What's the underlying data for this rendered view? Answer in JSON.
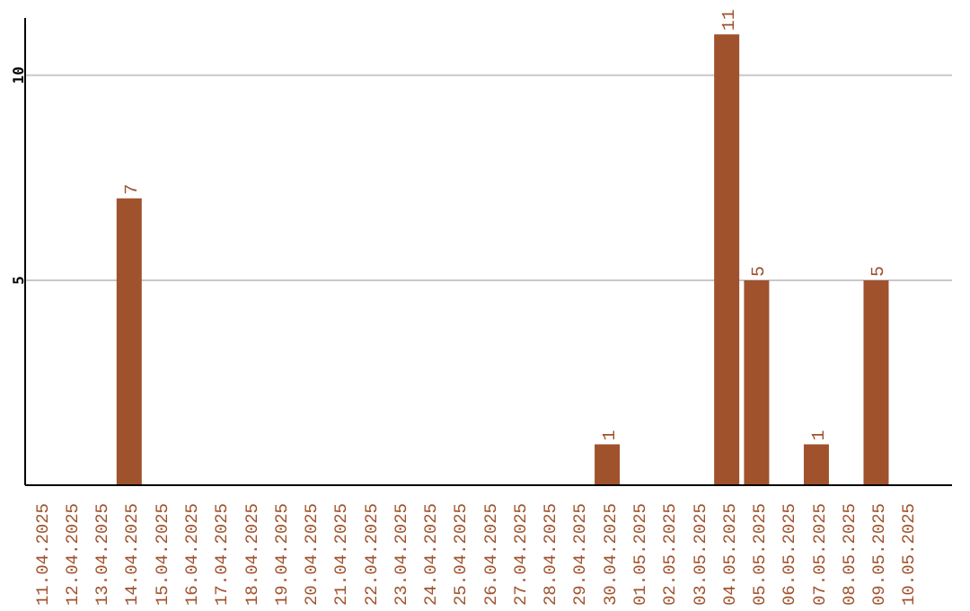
{
  "chart_data": {
    "type": "bar",
    "categories": [
      "11.04.2025",
      "12.04.2025",
      "13.04.2025",
      "14.04.2025",
      "15.04.2025",
      "16.04.2025",
      "17.04.2025",
      "18.04.2025",
      "19.04.2025",
      "20.04.2025",
      "21.04.2025",
      "22.04.2025",
      "23.04.2025",
      "24.04.2025",
      "25.04.2025",
      "26.04.2025",
      "27.04.2025",
      "28.04.2025",
      "29.04.2025",
      "30.04.2025",
      "01.05.2025",
      "02.05.2025",
      "03.05.2025",
      "04.05.2025",
      "05.05.2025",
      "06.05.2025",
      "07.05.2025",
      "08.05.2025",
      "09.05.2025",
      "10.05.2025"
    ],
    "values": [
      0,
      0,
      0,
      7,
      0,
      0,
      0,
      0,
      0,
      0,
      0,
      0,
      0,
      0,
      0,
      0,
      0,
      0,
      0,
      1,
      0,
      0,
      0,
      11,
      5,
      0,
      1,
      0,
      5,
      0
    ],
    "value_labels": [
      null,
      null,
      null,
      "7",
      null,
      null,
      null,
      null,
      null,
      null,
      null,
      null,
      null,
      null,
      null,
      null,
      null,
      null,
      null,
      "1",
      null,
      null,
      null,
      "11",
      "5",
      null,
      "1",
      null,
      "5",
      null
    ],
    "color": "#a0522d",
    "ylim": [
      0,
      11.4
    ],
    "yticks": [
      5,
      10
    ],
    "grid": "y"
  }
}
